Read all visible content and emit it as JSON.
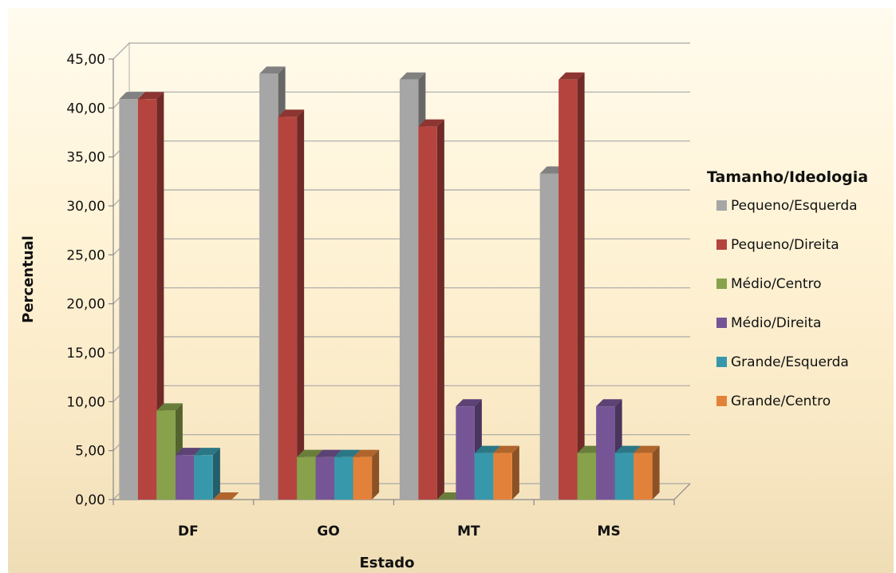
{
  "chart_data": {
    "type": "bar",
    "style": "3d-clustered-column",
    "categories": [
      "DF",
      "GO",
      "MT",
      "MS"
    ],
    "xlabel": "Estado",
    "ylabel": "Percentual",
    "ylim": [
      0,
      45
    ],
    "yticks": [
      "0,00",
      "5,00",
      "10,00",
      "15,00",
      "20,00",
      "25,00",
      "30,00",
      "35,00",
      "40,00",
      "45,00"
    ],
    "grid": true,
    "legend_title": "Tamanho/Ideologia",
    "legend_position": "right",
    "series": [
      {
        "name": "Pequeno/Esquerda",
        "color": "#a6a6a6",
        "values": [
          40.9,
          43.5,
          42.9,
          33.3
        ]
      },
      {
        "name": "Pequeno/Direita",
        "color": "#b5443f",
        "values": [
          40.9,
          39.1,
          38.1,
          42.9
        ]
      },
      {
        "name": "Médio/Centro",
        "color": "#87a24b",
        "values": [
          9.1,
          4.35,
          0,
          4.76
        ]
      },
      {
        "name": "Médio/Direita",
        "color": "#765596",
        "values": [
          4.55,
          4.35,
          9.52,
          9.52
        ]
      },
      {
        "name": "Grande/Esquerda",
        "color": "#3898ab",
        "values": [
          4.55,
          4.35,
          4.76,
          4.76
        ]
      },
      {
        "name": "Grande/Centro",
        "color": "#e2823a",
        "values": [
          0,
          4.35,
          4.76,
          4.76
        ]
      }
    ]
  }
}
